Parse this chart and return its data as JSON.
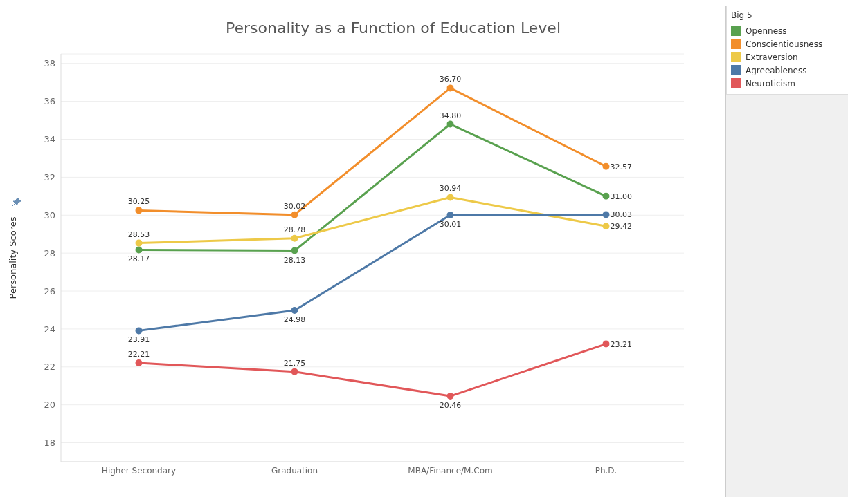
{
  "chart_data": {
    "type": "line",
    "title": "Personality as a Function of Education Level",
    "ylabel": "Personality Scores",
    "legend_title": "Big 5",
    "legend": "top right",
    "grid": "y",
    "marker": "circle",
    "line_style": "solid",
    "categories": [
      "Higher Secondary",
      "Graduation",
      "MBA/Finance/M.Com",
      "Ph.D."
    ],
    "ylim": [
      17,
      38.5
    ],
    "yticks": [
      18,
      20,
      22,
      24,
      26,
      28,
      30,
      32,
      34,
      36,
      38
    ],
    "series": [
      {
        "name": "Openness",
        "color": "#59a14f",
        "values": [
          28.17,
          28.13,
          34.8,
          31.0
        ],
        "value_labels": [
          "28.17",
          "28.13",
          "34.80",
          "31.00"
        ]
      },
      {
        "name": "Conscientiousness",
        "color": "#f28e2b",
        "values": [
          30.25,
          30.02,
          36.7,
          32.57
        ],
        "value_labels": [
          "30.25",
          "30.02",
          "36.70",
          "32.57"
        ]
      },
      {
        "name": "Extraversion",
        "color": "#edc948",
        "values": [
          28.53,
          28.78,
          30.94,
          29.42
        ],
        "value_labels": [
          "28.53",
          "28.78",
          "30.94",
          "29.42"
        ]
      },
      {
        "name": "Agreeableness",
        "color": "#4e79a7",
        "values": [
          23.91,
          24.98,
          30.01,
          30.03
        ],
        "value_labels": [
          "23.91",
          "24.98",
          "30.01",
          "30.03"
        ]
      },
      {
        "name": "Neuroticism",
        "color": "#e15759",
        "values": [
          22.21,
          21.75,
          20.46,
          23.21
        ],
        "value_labels": [
          "22.21",
          "21.75",
          "20.46",
          "23.21"
        ]
      }
    ]
  }
}
